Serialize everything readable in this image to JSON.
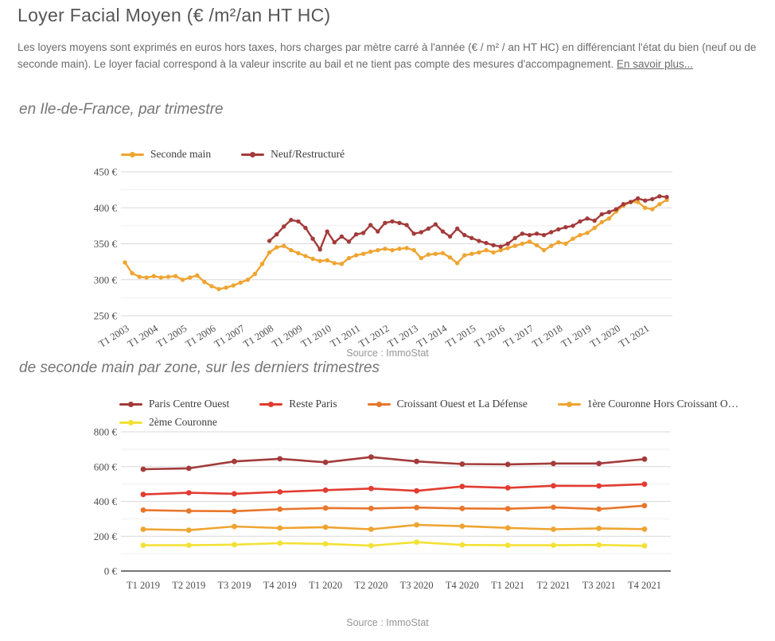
{
  "page": {
    "title": "Loyer Facial Moyen (€ /m²/an HT HC)",
    "intro_text": "Les loyers moyens sont exprimés en euros hors taxes, hors charges par mètre carré à l'année (€ / m² / an HT HC) en différenciant l'état du bien (neuf ou de seconde main). Le loyer facial correspond à la valeur inscrite au bail et ne tient pas compte des mesures d'accompagnement. ",
    "intro_link": "En savoir plus..."
  },
  "chart_data": [
    {
      "type": "line",
      "title": "en Ile-de-France, par trimestre",
      "source": "Source : ImmoStat",
      "ylim": [
        250,
        450
      ],
      "y_major_step": 50,
      "y_minor_step": 25,
      "y_tick_suffix": " €",
      "grid": true,
      "legend_position": "top-left",
      "n_points": 76,
      "x_first": "T1 2003",
      "x_last": "T4 2021",
      "x_tick_labels": [
        "T1 2003",
        "T1 2004",
        "T1 2005",
        "T1 2006",
        "T1 2007",
        "T1 2008",
        "T1 2009",
        "T1 2010",
        "T1 2011",
        "T1 2012",
        "T1 2013",
        "T1 2014",
        "T1 2015",
        "T1 2016",
        "T1 2017",
        "T1 2018",
        "T1 2019",
        "T1 2020",
        "T1 2021"
      ],
      "series": [
        {
          "name": "Seconde main",
          "color": "#EFA431",
          "start_index": 0,
          "values": [
            324,
            309,
            304,
            303,
            305,
            303,
            304,
            305,
            300,
            303,
            306,
            297,
            291,
            287,
            289,
            292,
            296,
            300,
            308,
            322,
            338,
            345,
            347,
            341,
            337,
            333,
            329,
            326,
            327,
            323,
            322,
            330,
            334,
            336,
            339,
            341,
            343,
            341,
            343,
            344,
            341,
            330,
            335,
            336,
            337,
            331,
            323,
            334,
            336,
            338,
            341,
            338,
            341,
            344,
            347,
            350,
            353,
            348,
            341,
            347,
            352,
            350,
            357,
            362,
            365,
            372,
            380,
            385,
            395,
            403,
            408,
            408,
            400,
            398,
            405,
            411
          ]
        },
        {
          "name": "Neuf/Restructuré",
          "color": "#A33B3B",
          "start_index": 20,
          "values": [
            354,
            363,
            374,
            383,
            381,
            372,
            357,
            342,
            367,
            352,
            360,
            353,
            363,
            365,
            376,
            367,
            379,
            381,
            379,
            376,
            364,
            366,
            371,
            377,
            367,
            360,
            371,
            362,
            358,
            354,
            351,
            348,
            346,
            350,
            358,
            364,
            362,
            364,
            362,
            366,
            370,
            373,
            375,
            381,
            385,
            382,
            391,
            394,
            398,
            405,
            408,
            413,
            410,
            412,
            416,
            415
          ]
        }
      ]
    },
    {
      "type": "line",
      "title": "de seconde main par zone, sur les derniers trimestres",
      "source": "Source : ImmoStat",
      "ylim": [
        0,
        800
      ],
      "y_major_step": 200,
      "y_minor_step": 100,
      "y_tick_suffix": " €",
      "grid": true,
      "legend_position": "top-left",
      "n_points": 12,
      "x_tick_labels": [
        "T1 2019",
        "T2 2019",
        "T3 2019",
        "T4 2019",
        "T1 2020",
        "T2 2020",
        "T3 2020",
        "T4 2020",
        "T1 2021",
        "T2 2021",
        "T3 2021",
        "T4 2021"
      ],
      "series": [
        {
          "name": "Paris Centre Ouest",
          "color": "#A33B3B",
          "start_index": 0,
          "values": [
            585,
            590,
            630,
            645,
            625,
            655,
            630,
            615,
            613,
            618,
            618,
            643
          ]
        },
        {
          "name": "Reste Paris",
          "color": "#E23B30",
          "start_index": 0,
          "values": [
            440,
            450,
            444,
            455,
            465,
            474,
            461,
            486,
            478,
            490,
            489,
            499
          ]
        },
        {
          "name": "Croissant Ouest et La Défense",
          "color": "#E8762B",
          "start_index": 0,
          "values": [
            350,
            345,
            344,
            355,
            362,
            360,
            365,
            360,
            358,
            366,
            356,
            376
          ]
        },
        {
          "name": "1ère Couronne Hors Croissant O…",
          "color": "#EFA431",
          "start_index": 0,
          "values": [
            240,
            235,
            256,
            247,
            252,
            240,
            265,
            258,
            248,
            240,
            245,
            241
          ]
        },
        {
          "name": "2ème Couronne",
          "color": "#F3E135",
          "start_index": 0,
          "values": [
            148,
            148,
            152,
            160,
            156,
            146,
            166,
            150,
            148,
            148,
            150,
            145
          ]
        }
      ]
    }
  ]
}
